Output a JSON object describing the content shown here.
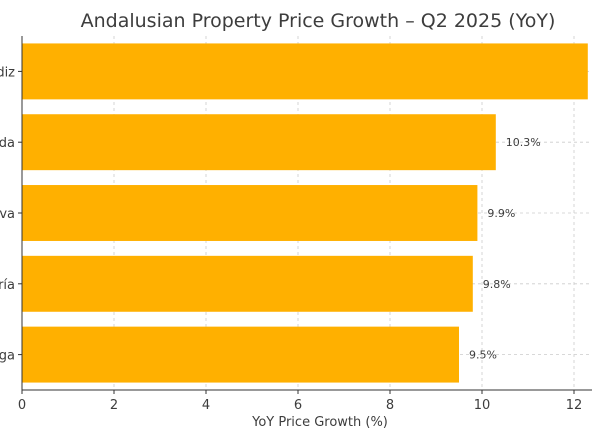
{
  "colors": {
    "bar": "#FFB000",
    "text": "#3d3d3d",
    "grid": "#cccccc",
    "background": "#ffffff"
  },
  "chart_data": {
    "type": "bar",
    "orientation": "horizontal",
    "title": "Andalusian Property Price Growth – Q2 2025 (YoY)",
    "xlabel": "YoY Price Growth (%)",
    "ylabel": "",
    "xlim": [
      0,
      12.4
    ],
    "x_ticks": [
      0,
      2,
      4,
      6,
      8,
      10,
      12
    ],
    "grid": true,
    "categories": [
      "diz",
      "da",
      "va",
      "ría",
      "ga"
    ],
    "values": [
      12.3,
      10.3,
      9.9,
      9.8,
      9.5
    ],
    "data_labels": [
      "",
      "10.3%",
      "9.9%",
      "9.8%",
      "9.5%"
    ]
  }
}
